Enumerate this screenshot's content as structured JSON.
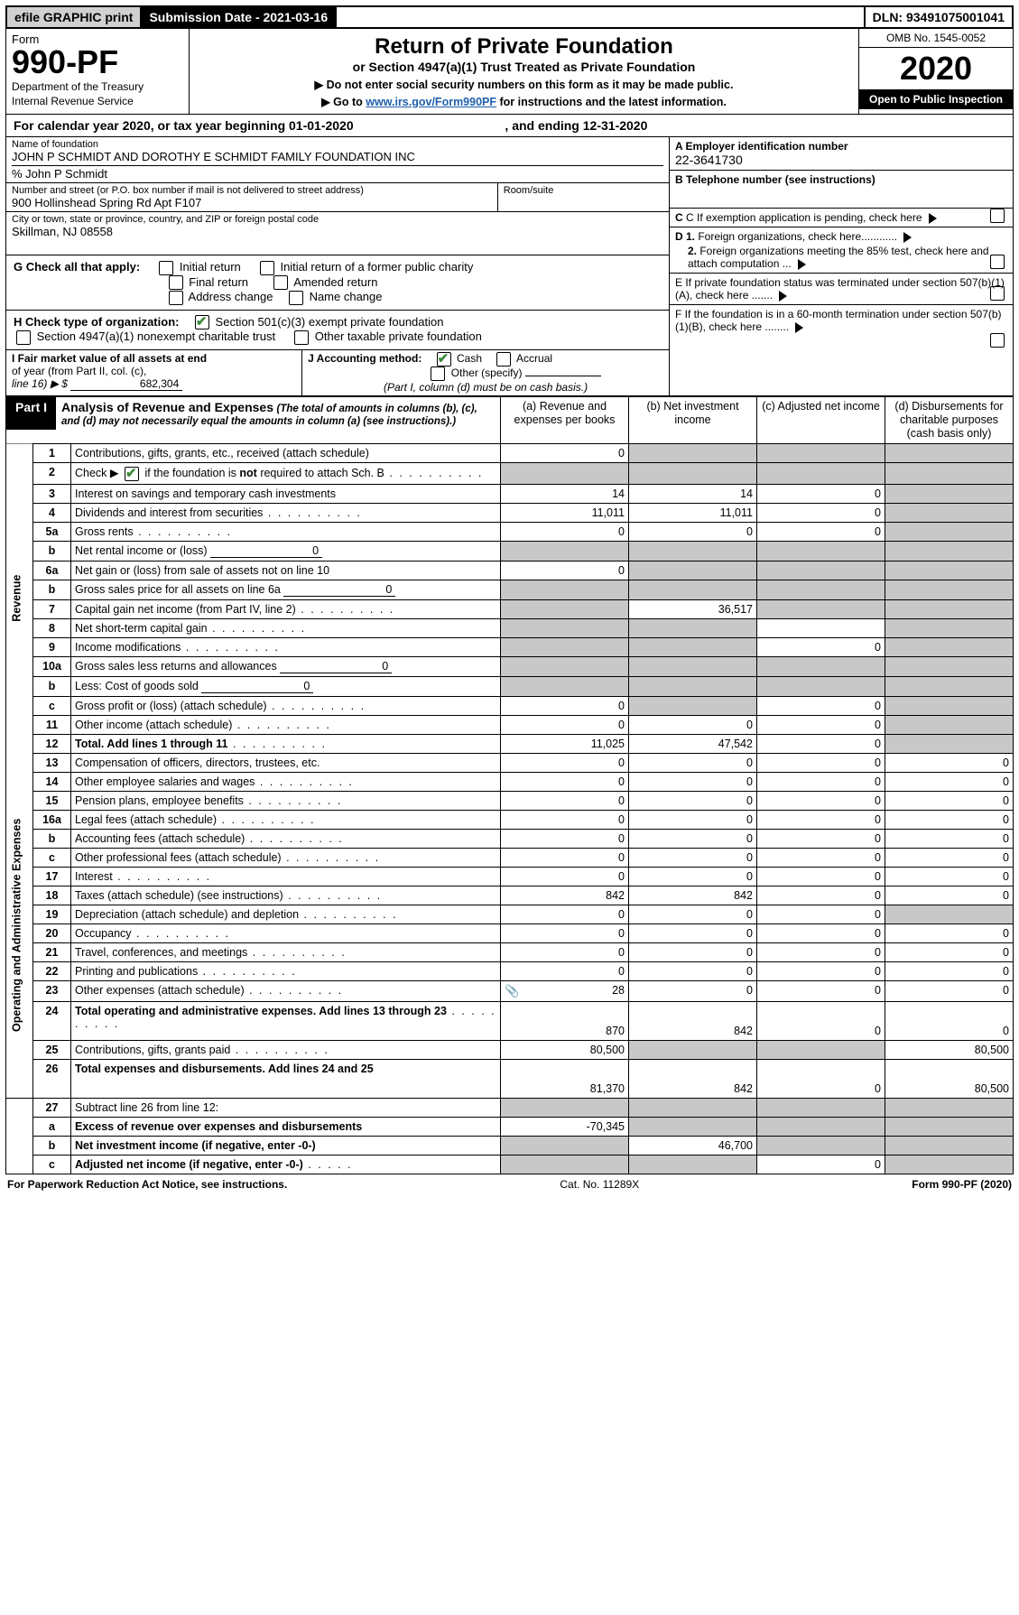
{
  "header": {
    "efile": "efile GRAPHIC print",
    "submission": "Submission Date - 2021-03-16",
    "dln": "DLN: 93491075001041"
  },
  "formTop": {
    "form_label": "Form",
    "form_no": "990-PF",
    "dept1": "Department of the Treasury",
    "dept2": "Internal Revenue Service",
    "title": "Return of Private Foundation",
    "subtitle": "or Section 4947(a)(1) Trust Treated as Private Foundation",
    "note1": "▶ Do not enter social security numbers on this form as it may be made public.",
    "note2_pre": "▶ Go to ",
    "note2_link": "www.irs.gov/Form990PF",
    "note2_post": " for instructions and the latest information.",
    "omb": "OMB No. 1545-0052",
    "year": "2020",
    "inspect": "Open to Public Inspection"
  },
  "calendar": {
    "text_pre": "For calendar year 2020, or tax year beginning ",
    "begin": "01-01-2020",
    "text_mid": " , and ending ",
    "end": "12-31-2020"
  },
  "ident": {
    "name_label": "Name of foundation",
    "name": "JOHN P SCHMIDT AND DOROTHY E SCHMIDT FAMILY FOUNDATION INC",
    "care_of": "% John P Schmidt",
    "addr_label": "Number and street (or P.O. box number if mail is not delivered to street address)",
    "addr": "900 Hollinshead Spring Rd Apt F107",
    "room_label": "Room/suite",
    "room": "",
    "city_label": "City or town, state or province, country, and ZIP or foreign postal code",
    "city": "Skillman, NJ  08558",
    "A_label": "A Employer identification number",
    "A_val": "22-3641730",
    "B_label": "B Telephone number (see instructions)",
    "B_val": "",
    "C_label": "C If exemption application is pending, check here",
    "D1_label": "D 1. Foreign organizations, check here............",
    "D2_label": "2. Foreign organizations meeting the 85% test, check here and attach computation ...",
    "E_label": "E  If private foundation status was terminated under section 507(b)(1)(A), check here .......",
    "F_label": "F  If the foundation is in a 60-month termination under section 507(b)(1)(B), check here ........"
  },
  "G": {
    "label": "G Check all that apply:",
    "opts": [
      "Initial return",
      "Initial return of a former public charity",
      "Final return",
      "Amended return",
      "Address change",
      "Name change"
    ]
  },
  "H": {
    "label": "H Check type of organization:",
    "opt1": "Section 501(c)(3) exempt private foundation",
    "opt2": "Section 4947(a)(1) nonexempt charitable trust",
    "opt3": "Other taxable private foundation"
  },
  "I": {
    "label1": "I Fair market value of all assets at end",
    "label2": "of year (from Part II, col. (c),",
    "label3": "line 16) ▶ $",
    "value": "682,304"
  },
  "J": {
    "label": "J Accounting method:",
    "cash": "Cash",
    "accrual": "Accrual",
    "other": "Other (specify)",
    "note": "(Part I, column (d) must be on cash basis.)"
  },
  "part1": {
    "tag": "Part I",
    "title": "Analysis of Revenue and Expenses",
    "note": "(The total of amounts in columns (b), (c), and (d) may not necessarily equal the amounts in column (a) (see instructions).)",
    "col_a": "(a)   Revenue and expenses per books",
    "col_b": "(b)  Net investment income",
    "col_c": "(c)  Adjusted net income",
    "col_d": "(d)  Disbursements for charitable purposes (cash basis only)"
  },
  "sides": {
    "revenue": "Revenue",
    "expenses": "Operating and Administrative Expenses"
  },
  "rows": [
    {
      "n": "1",
      "t": "Contributions, gifts, grants, etc., received (attach schedule)",
      "a": "0",
      "b": "",
      "c": "",
      "d": "",
      "sb": true,
      "sc": true,
      "sd": true
    },
    {
      "n": "2",
      "t": "Check ▶ [x] if the foundation is not required to attach Sch. B",
      "a": "",
      "b": "",
      "c": "",
      "d": "",
      "sa": true,
      "sb": true,
      "sc": true,
      "sd": true,
      "dots": true,
      "cb": true
    },
    {
      "n": "3",
      "t": "Interest on savings and temporary cash investments",
      "a": "14",
      "b": "14",
      "c": "0",
      "d": "",
      "sd": true
    },
    {
      "n": "4",
      "t": "Dividends and interest from securities",
      "a": "11,011",
      "b": "11,011",
      "c": "0",
      "d": "",
      "sd": true,
      "dots": true
    },
    {
      "n": "5a",
      "t": "Gross rents",
      "a": "0",
      "b": "0",
      "c": "0",
      "d": "",
      "sd": true,
      "dots": true
    },
    {
      "n": "b",
      "t": "Net rental income or (loss)",
      "fill": "0",
      "a": "",
      "b": "",
      "c": "",
      "d": "",
      "sa": true,
      "sb": true,
      "sc": true,
      "sd": true
    },
    {
      "n": "6a",
      "t": "Net gain or (loss) from sale of assets not on line 10",
      "a": "0",
      "b": "",
      "c": "",
      "d": "",
      "sb": true,
      "sc": true,
      "sd": true
    },
    {
      "n": "b",
      "t": "Gross sales price for all assets on line 6a",
      "fill": "0",
      "a": "",
      "b": "",
      "c": "",
      "d": "",
      "sa": true,
      "sb": true,
      "sc": true,
      "sd": true
    },
    {
      "n": "7",
      "t": "Capital gain net income (from Part IV, line 2)",
      "a": "",
      "b": "36,517",
      "c": "",
      "d": "",
      "sa": true,
      "sc": true,
      "sd": true,
      "dots": true
    },
    {
      "n": "8",
      "t": "Net short-term capital gain",
      "a": "",
      "b": "",
      "c": "",
      "d": "",
      "sa": true,
      "sb": true,
      "sd": true,
      "dots": true
    },
    {
      "n": "9",
      "t": "Income modifications",
      "a": "",
      "b": "",
      "c": "0",
      "d": "",
      "sa": true,
      "sb": true,
      "sd": true,
      "dots": true
    },
    {
      "n": "10a",
      "t": "Gross sales less returns and allowances",
      "fill": "0",
      "a": "",
      "b": "",
      "c": "",
      "d": "",
      "sa": true,
      "sb": true,
      "sc": true,
      "sd": true
    },
    {
      "n": "b",
      "t": "Less: Cost of goods sold",
      "fill": "0",
      "a": "",
      "b": "",
      "c": "",
      "d": "",
      "sa": true,
      "sb": true,
      "sc": true,
      "sd": true,
      "dots": true
    },
    {
      "n": "c",
      "t": "Gross profit or (loss) (attach schedule)",
      "a": "0",
      "b": "",
      "c": "0",
      "d": "",
      "sb": true,
      "sd": true,
      "dots": true
    },
    {
      "n": "11",
      "t": "Other income (attach schedule)",
      "a": "0",
      "b": "0",
      "c": "0",
      "d": "",
      "sd": true,
      "dots": true
    },
    {
      "n": "12",
      "t": "Total. Add lines 1 through 11",
      "a": "11,025",
      "b": "47,542",
      "c": "0",
      "d": "",
      "sd": true,
      "bold": true,
      "dots": true
    }
  ],
  "exp_rows": [
    {
      "n": "13",
      "t": "Compensation of officers, directors, trustees, etc.",
      "a": "0",
      "b": "0",
      "c": "0",
      "d": "0"
    },
    {
      "n": "14",
      "t": "Other employee salaries and wages",
      "a": "0",
      "b": "0",
      "c": "0",
      "d": "0",
      "dots": true
    },
    {
      "n": "15",
      "t": "Pension plans, employee benefits",
      "a": "0",
      "b": "0",
      "c": "0",
      "d": "0",
      "dots": true
    },
    {
      "n": "16a",
      "t": "Legal fees (attach schedule)",
      "a": "0",
      "b": "0",
      "c": "0",
      "d": "0",
      "dots": true
    },
    {
      "n": "b",
      "t": "Accounting fees (attach schedule)",
      "a": "0",
      "b": "0",
      "c": "0",
      "d": "0",
      "dots": true
    },
    {
      "n": "c",
      "t": "Other professional fees (attach schedule)",
      "a": "0",
      "b": "0",
      "c": "0",
      "d": "0",
      "dots": true
    },
    {
      "n": "17",
      "t": "Interest",
      "a": "0",
      "b": "0",
      "c": "0",
      "d": "0",
      "dots": true
    },
    {
      "n": "18",
      "t": "Taxes (attach schedule) (see instructions)",
      "a": "842",
      "b": "842",
      "c": "0",
      "d": "0",
      "dots": true
    },
    {
      "n": "19",
      "t": "Depreciation (attach schedule) and depletion",
      "a": "0",
      "b": "0",
      "c": "0",
      "d": "",
      "sd": true,
      "dots": true
    },
    {
      "n": "20",
      "t": "Occupancy",
      "a": "0",
      "b": "0",
      "c": "0",
      "d": "0",
      "dots": true
    },
    {
      "n": "21",
      "t": "Travel, conferences, and meetings",
      "a": "0",
      "b": "0",
      "c": "0",
      "d": "0",
      "dots": true
    },
    {
      "n": "22",
      "t": "Printing and publications",
      "a": "0",
      "b": "0",
      "c": "0",
      "d": "0",
      "dots": true
    },
    {
      "n": "23",
      "t": "Other expenses (attach schedule)",
      "a": "28",
      "b": "0",
      "c": "0",
      "d": "0",
      "dots": true,
      "clip": true
    },
    {
      "n": "24",
      "t": "Total operating and administrative expenses. Add lines 13 through 23",
      "a": "870",
      "b": "842",
      "c": "0",
      "d": "0",
      "bold": true,
      "dots": true,
      "tall": true
    },
    {
      "n": "25",
      "t": "Contributions, gifts, grants paid",
      "a": "80,500",
      "b": "",
      "c": "",
      "d": "80,500",
      "sb": true,
      "sc": true,
      "dots": true
    },
    {
      "n": "26",
      "t": "Total expenses and disbursements. Add lines 24 and 25",
      "a": "81,370",
      "b": "842",
      "c": "0",
      "d": "80,500",
      "bold": true,
      "tall": true
    }
  ],
  "line27": {
    "n": "27",
    "t": "Subtract line 26 from line 12:",
    "a_n": "a",
    "a_t": "Excess of revenue over expenses and disbursements",
    "a_v": "-70,345",
    "b_n": "b",
    "b_t": "Net investment income (if negative, enter -0-)",
    "b_v": "46,700",
    "c_n": "c",
    "c_t": "Adjusted net income (if negative, enter -0-)",
    "c_v": "0"
  },
  "footer": {
    "left": "For Paperwork Reduction Act Notice, see instructions.",
    "mid": "Cat. No. 11289X",
    "right": "Form 990-PF (2020)"
  },
  "colors": {
    "shade": "#c8c8c8",
    "link": "#1f5faa",
    "check": "#3b8a3b"
  }
}
